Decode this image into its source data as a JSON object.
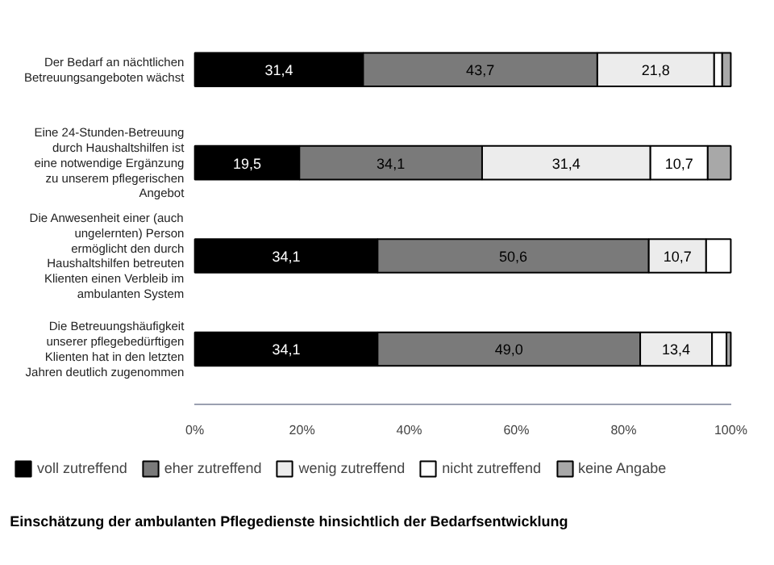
{
  "chart_data": {
    "type": "bar",
    "orientation": "horizontal",
    "stacked": true,
    "title": "Einschätzung der ambulanten Pflegedienste hinsichtlich der Bedarfsentwicklung",
    "categories": [
      "Der Bedarf an nächtlichen Betreuungsangeboten wächst",
      "Eine 24-Stunden-Betreuung durch Haushaltshilfen ist eine notwendige Ergänzung zu unserem pflegerischen Angebot",
      "Die Anwesenheit einer (auch ungelernten) Person ermöglicht den durch Haushaltshilfen betreuten Klienten einen Verbleib im ambulanten System",
      "Die Betreuungshäufigkeit unserer pflegebedürftigen Klienten hat in den letzten Jahren deutlich zugenommen"
    ],
    "series": [
      {
        "name": "voll zutreffend",
        "color": "#000000",
        "values": [
          31.4,
          19.5,
          34.1,
          34.1
        ],
        "value_labels": [
          "31,4",
          "19,5",
          "34,1",
          "34,1"
        ]
      },
      {
        "name": "eher zutreffend",
        "color": "#7a7a7a",
        "values": [
          43.7,
          34.1,
          50.6,
          49.0
        ],
        "value_labels": [
          "43,7",
          "34,1",
          "50,6",
          "49,0"
        ]
      },
      {
        "name": "wenig zutreffend",
        "color": "#ececec",
        "values": [
          21.8,
          31.4,
          10.7,
          13.4
        ],
        "value_labels": [
          "21,8",
          "31,4",
          "10,7",
          "13,4"
        ]
      },
      {
        "name": "nicht zutreffend",
        "color": "#ffffff",
        "values": [
          1.5,
          10.7,
          4.6,
          2.7
        ],
        "value_labels": [
          null,
          "10,7",
          null,
          null
        ]
      },
      {
        "name": "keine Angabe",
        "color": "#a8a8a8",
        "values": [
          1.6,
          4.3,
          0,
          0.8
        ],
        "value_labels": [
          null,
          null,
          null,
          null
        ]
      }
    ],
    "xlim": [
      0,
      100
    ],
    "xticks": [
      {
        "value": 0,
        "label": "0%"
      },
      {
        "value": 20,
        "label": "20%"
      },
      {
        "value": 40,
        "label": "40%"
      },
      {
        "value": 60,
        "label": "60%"
      },
      {
        "value": 80,
        "label": "80%"
      },
      {
        "value": 100,
        "label": "100%"
      }
    ],
    "grid": false,
    "legend": "bottom"
  }
}
